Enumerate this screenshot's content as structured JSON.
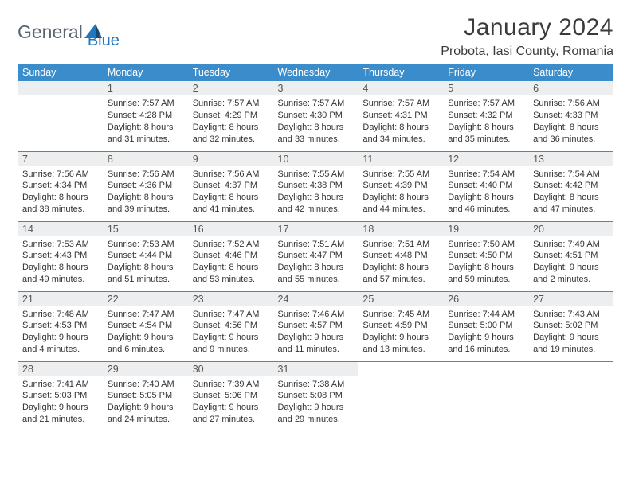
{
  "brand": {
    "general": "General",
    "blue": "Blue"
  },
  "title": "January 2024",
  "location": "Probota, Iasi County, Romania",
  "dayHeaders": [
    "Sunday",
    "Monday",
    "Tuesday",
    "Wednesday",
    "Thursday",
    "Friday",
    "Saturday"
  ],
  "colors": {
    "headerBg": "#3b8ccb",
    "headerText": "#ffffff",
    "dayBarBg": "#eceeef",
    "border": "#3b8ccb",
    "brandBlue": "#2176bd",
    "brandGray": "#5a6570"
  },
  "days": [
    {
      "n": 1,
      "sunrise": "7:57 AM",
      "sunset": "4:28 PM",
      "daylight": "8 hours and 31 minutes."
    },
    {
      "n": 2,
      "sunrise": "7:57 AM",
      "sunset": "4:29 PM",
      "daylight": "8 hours and 32 minutes."
    },
    {
      "n": 3,
      "sunrise": "7:57 AM",
      "sunset": "4:30 PM",
      "daylight": "8 hours and 33 minutes."
    },
    {
      "n": 4,
      "sunrise": "7:57 AM",
      "sunset": "4:31 PM",
      "daylight": "8 hours and 34 minutes."
    },
    {
      "n": 5,
      "sunrise": "7:57 AM",
      "sunset": "4:32 PM",
      "daylight": "8 hours and 35 minutes."
    },
    {
      "n": 6,
      "sunrise": "7:56 AM",
      "sunset": "4:33 PM",
      "daylight": "8 hours and 36 minutes."
    },
    {
      "n": 7,
      "sunrise": "7:56 AM",
      "sunset": "4:34 PM",
      "daylight": "8 hours and 38 minutes."
    },
    {
      "n": 8,
      "sunrise": "7:56 AM",
      "sunset": "4:36 PM",
      "daylight": "8 hours and 39 minutes."
    },
    {
      "n": 9,
      "sunrise": "7:56 AM",
      "sunset": "4:37 PM",
      "daylight": "8 hours and 41 minutes."
    },
    {
      "n": 10,
      "sunrise": "7:55 AM",
      "sunset": "4:38 PM",
      "daylight": "8 hours and 42 minutes."
    },
    {
      "n": 11,
      "sunrise": "7:55 AM",
      "sunset": "4:39 PM",
      "daylight": "8 hours and 44 minutes."
    },
    {
      "n": 12,
      "sunrise": "7:54 AM",
      "sunset": "4:40 PM",
      "daylight": "8 hours and 46 minutes."
    },
    {
      "n": 13,
      "sunrise": "7:54 AM",
      "sunset": "4:42 PM",
      "daylight": "8 hours and 47 minutes."
    },
    {
      "n": 14,
      "sunrise": "7:53 AM",
      "sunset": "4:43 PM",
      "daylight": "8 hours and 49 minutes."
    },
    {
      "n": 15,
      "sunrise": "7:53 AM",
      "sunset": "4:44 PM",
      "daylight": "8 hours and 51 minutes."
    },
    {
      "n": 16,
      "sunrise": "7:52 AM",
      "sunset": "4:46 PM",
      "daylight": "8 hours and 53 minutes."
    },
    {
      "n": 17,
      "sunrise": "7:51 AM",
      "sunset": "4:47 PM",
      "daylight": "8 hours and 55 minutes."
    },
    {
      "n": 18,
      "sunrise": "7:51 AM",
      "sunset": "4:48 PM",
      "daylight": "8 hours and 57 minutes."
    },
    {
      "n": 19,
      "sunrise": "7:50 AM",
      "sunset": "4:50 PM",
      "daylight": "8 hours and 59 minutes."
    },
    {
      "n": 20,
      "sunrise": "7:49 AM",
      "sunset": "4:51 PM",
      "daylight": "9 hours and 2 minutes."
    },
    {
      "n": 21,
      "sunrise": "7:48 AM",
      "sunset": "4:53 PM",
      "daylight": "9 hours and 4 minutes."
    },
    {
      "n": 22,
      "sunrise": "7:47 AM",
      "sunset": "4:54 PM",
      "daylight": "9 hours and 6 minutes."
    },
    {
      "n": 23,
      "sunrise": "7:47 AM",
      "sunset": "4:56 PM",
      "daylight": "9 hours and 9 minutes."
    },
    {
      "n": 24,
      "sunrise": "7:46 AM",
      "sunset": "4:57 PM",
      "daylight": "9 hours and 11 minutes."
    },
    {
      "n": 25,
      "sunrise": "7:45 AM",
      "sunset": "4:59 PM",
      "daylight": "9 hours and 13 minutes."
    },
    {
      "n": 26,
      "sunrise": "7:44 AM",
      "sunset": "5:00 PM",
      "daylight": "9 hours and 16 minutes."
    },
    {
      "n": 27,
      "sunrise": "7:43 AM",
      "sunset": "5:02 PM",
      "daylight": "9 hours and 19 minutes."
    },
    {
      "n": 28,
      "sunrise": "7:41 AM",
      "sunset": "5:03 PM",
      "daylight": "9 hours and 21 minutes."
    },
    {
      "n": 29,
      "sunrise": "7:40 AM",
      "sunset": "5:05 PM",
      "daylight": "9 hours and 24 minutes."
    },
    {
      "n": 30,
      "sunrise": "7:39 AM",
      "sunset": "5:06 PM",
      "daylight": "9 hours and 27 minutes."
    },
    {
      "n": 31,
      "sunrise": "7:38 AM",
      "sunset": "5:08 PM",
      "daylight": "9 hours and 29 minutes."
    }
  ],
  "startWeekday": 1,
  "labels": {
    "sunrise": "Sunrise:",
    "sunset": "Sunset:",
    "daylight": "Daylight:"
  }
}
